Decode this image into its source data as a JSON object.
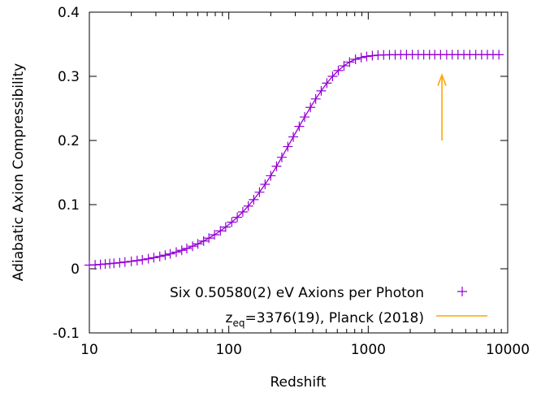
{
  "chart_data": {
    "type": "scatter",
    "xscale": "log",
    "xlabel": "Redshift",
    "ylabel": "Adiabatic Axion Compressibility",
    "xlim": [
      10,
      10000
    ],
    "ylim": [
      -0.1,
      0.4
    ],
    "x_ticks": [
      "10",
      "100",
      "1000",
      "10000"
    ],
    "y_ticks": [
      "0.4",
      "0.3",
      "0.2",
      "0.1",
      "0",
      "-0.1"
    ],
    "grid": false,
    "legend_position": "bottom-right",
    "series": [
      {
        "name": "Six 0.50580(2) eV Axions per Photon",
        "marker": "plus",
        "color": "#9400d3",
        "line": true,
        "points": [
          [
            10,
            0.0057
          ],
          [
            11,
            0.0062
          ],
          [
            12,
            0.0068
          ],
          [
            13,
            0.0074
          ],
          [
            14,
            0.008
          ],
          [
            15,
            0.0086
          ],
          [
            16.5,
            0.0095
          ],
          [
            18,
            0.0104
          ],
          [
            20,
            0.0116
          ],
          [
            22,
            0.0128
          ],
          [
            24,
            0.014
          ],
          [
            26.5,
            0.0156
          ],
          [
            29,
            0.0172
          ],
          [
            32,
            0.0192
          ],
          [
            35,
            0.0212
          ],
          [
            38,
            0.0232
          ],
          [
            42,
            0.026
          ],
          [
            46,
            0.0288
          ],
          [
            50,
            0.0316
          ],
          [
            55,
            0.0352
          ],
          [
            60,
            0.0388
          ],
          [
            66,
            0.0432
          ],
          [
            72,
            0.0478
          ],
          [
            79,
            0.053
          ],
          [
            87,
            0.059
          ],
          [
            95,
            0.065
          ],
          [
            105,
            0.0726
          ],
          [
            115,
            0.0802
          ],
          [
            126,
            0.0886
          ],
          [
            138,
            0.0978
          ],
          [
            151,
            0.1078
          ],
          [
            166,
            0.1194
          ],
          [
            182,
            0.1316
          ],
          [
            200,
            0.145
          ],
          [
            220,
            0.1598
          ],
          [
            240,
            0.1738
          ],
          [
            265,
            0.1904
          ],
          [
            290,
            0.2056
          ],
          [
            320,
            0.222
          ],
          [
            350,
            0.2366
          ],
          [
            385,
            0.2516
          ],
          [
            420,
            0.2648
          ],
          [
            460,
            0.2774
          ],
          [
            505,
            0.2894
          ],
          [
            555,
            0.3
          ],
          [
            610,
            0.309
          ],
          [
            670,
            0.3164
          ],
          [
            735,
            0.3222
          ],
          [
            810,
            0.3266
          ],
          [
            890,
            0.3292
          ],
          [
            975,
            0.331
          ],
          [
            1070,
            0.3322
          ],
          [
            1175,
            0.333
          ],
          [
            1290,
            0.3334
          ],
          [
            1420,
            0.3336
          ],
          [
            1560,
            0.3336
          ],
          [
            1710,
            0.3337
          ],
          [
            1880,
            0.3337
          ],
          [
            2070,
            0.3337
          ],
          [
            2280,
            0.3337
          ],
          [
            2500,
            0.3337
          ],
          [
            2750,
            0.3337
          ],
          [
            3000,
            0.3337
          ],
          [
            3300,
            0.3337
          ],
          [
            3650,
            0.3337
          ],
          [
            4000,
            0.3337
          ],
          [
            4400,
            0.3337
          ],
          [
            4850,
            0.3337
          ],
          [
            5350,
            0.3337
          ],
          [
            5900,
            0.3337
          ],
          [
            6500,
            0.3337
          ],
          [
            7150,
            0.3337
          ],
          [
            7850,
            0.3337
          ],
          [
            8650,
            0.3337
          ]
        ]
      },
      {
        "name_main": "z",
        "name_sub": "eq",
        "name_rest": "=3376(19), Planck (2018)",
        "marker": "arrow",
        "color": "#ffa500",
        "arrow": {
          "x": 3376,
          "y_start": 0.2,
          "y_end": 0.302
        }
      }
    ]
  }
}
